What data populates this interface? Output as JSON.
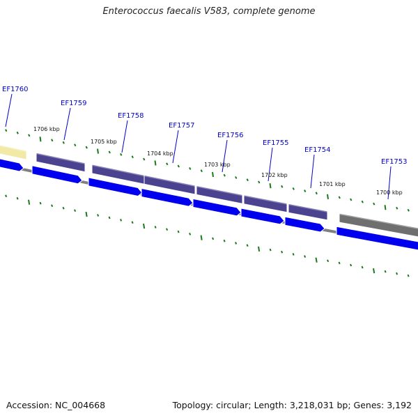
{
  "title": "Enterococcus faecalis V583, complete genome",
  "footer": {
    "accession": "Accession: NC_004668",
    "summary": "Topology: circular; Length: 3,218,031 bp; Genes: 3,192"
  },
  "genes": [
    {
      "label": "EF1760",
      "color": "#f2e9a6"
    },
    {
      "label": "EF1759",
      "color": "#4b4390"
    },
    {
      "label": "EF1758",
      "color": "#4b4390"
    },
    {
      "label": "EF1757",
      "color": "#4b4390"
    },
    {
      "label": "EF1756",
      "color": "#4b4390"
    },
    {
      "label": "EF1755",
      "color": "#4b4390"
    },
    {
      "label": "EF1754",
      "color": "#4b4390"
    },
    {
      "label": "EF1753",
      "color": "#6f6f6f"
    }
  ],
  "kbp_ticks": [
    "1706 kbp",
    "1705 kbp",
    "1704 kbp",
    "1703 kbp",
    "1702 kbp",
    "1701 kbp",
    "1700 kbp"
  ],
  "colors": {
    "cds_arrow": "#0000ee",
    "backbone": "#808080",
    "tick_marks": "#1a7a1a",
    "label_text": "#0000cc"
  }
}
